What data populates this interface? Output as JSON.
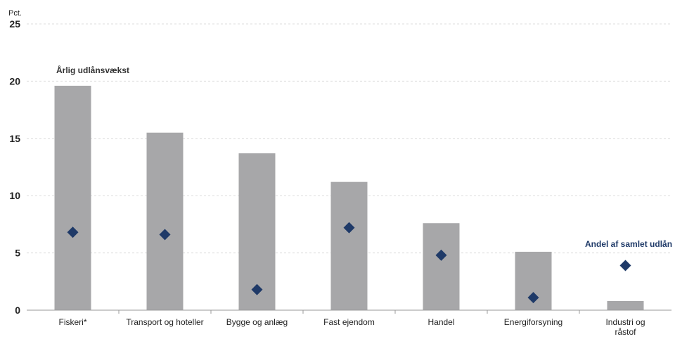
{
  "chart_data": {
    "type": "bar",
    "unit_label": "Pct.",
    "categories": [
      [
        "Fiskeri*"
      ],
      [
        "Transport og hoteller"
      ],
      [
        "Bygge og anlæg"
      ],
      [
        "Fast ejendom"
      ],
      [
        "Handel"
      ],
      [
        "Energiforsyning"
      ],
      [
        "Industri og",
        "råstof"
      ]
    ],
    "series": [
      {
        "name": "Årlig udlånsvækst",
        "kind": "bar",
        "color": "#a7a7a9",
        "values": [
          19.6,
          15.5,
          13.7,
          11.2,
          7.6,
          5.1,
          0.8
        ]
      },
      {
        "name": "Andel af samlet udlån",
        "kind": "marker",
        "marker": "diamond",
        "color": "#1f3a68",
        "values": [
          6.8,
          6.6,
          1.8,
          7.2,
          4.8,
          1.1,
          3.9
        ]
      }
    ],
    "ylim": [
      0,
      25
    ],
    "yticks": [
      0,
      5,
      10,
      15,
      20,
      25
    ],
    "grid": true
  }
}
